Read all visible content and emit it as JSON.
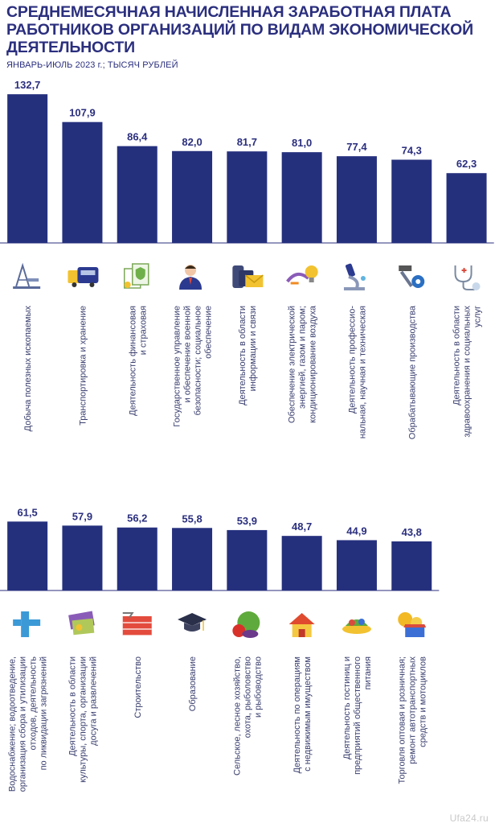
{
  "title": "СРЕДНЕМЕСЯЧНАЯ НАЧИСЛЕННАЯ ЗАРАБОТНАЯ ПЛАТА РАБОТНИКОВ ОРГАНИЗАЦИЙ ПО ВИДАМ ЭКОНОМИЧЕСКОЙ ДЕЯТЕЛЬНОСТИ",
  "subtitle": "ЯНВАРЬ-ИЮЛЬ 2023 г.; ТЫСЯЧ РУБЛЕЙ",
  "watermark": "Ufa24.ru",
  "colors": {
    "bar": "#25307d",
    "text": "#2b2f7e",
    "axis": "#2b2f7e"
  },
  "chart_data": [
    {
      "type": "bar",
      "categories": [
        [
          "Добыча полезных ископаемых"
        ],
        [
          "Транспортировка и хранение"
        ],
        [
          "Деятельность финансовая",
          "и страховая"
        ],
        [
          "Государственное управление",
          "и обеспечение военной",
          "безопасности; социальное",
          "обеспечение"
        ],
        [
          "Деятельность в области",
          "информации и связи"
        ],
        [
          "Обеспечение электрической",
          "энергией, газом и паром;",
          "кондиционирование воздуха"
        ],
        [
          "Деятельность профессио-",
          "нальная, научная и техническая"
        ],
        [
          "Обрабатывающие производства"
        ],
        [
          "Деятельность в области",
          "здравоохранения и социальных",
          "услуг"
        ]
      ],
      "values": [
        132.7,
        107.9,
        86.4,
        82.0,
        81.7,
        81.0,
        77.4,
        74.3,
        62.3
      ],
      "labels": [
        "132,7",
        "107,9",
        "86,4",
        "82,0",
        "81,7",
        "81,0",
        "77,4",
        "74,3",
        "62,3"
      ],
      "icons": [
        "oil-derrick-icon",
        "truck-icon",
        "finance-documents-icon",
        "government-official-icon",
        "phone-mail-icon",
        "energy-bulb-icon",
        "microscope-icon",
        "hammer-gear-icon",
        "stethoscope-icon"
      ]
    },
    {
      "type": "bar",
      "categories": [
        [
          "Водоснабжение; водоотведение,",
          "организация сбора и утилизации",
          "отходов, деятельность",
          "по ликвидации загрязнений"
        ],
        [
          "Деятельность в области",
          "культуры, спорта, организации",
          "досуга и развлечений"
        ],
        [
          "Строительство"
        ],
        [
          "Образование"
        ],
        [
          "Сельское, лесное хозяйство,",
          "охота, рыболовство",
          "и рыбоводство"
        ],
        [
          "Деятельность по операциям",
          "с недвижимым имуществом"
        ],
        [
          "Деятельность гостиниц и",
          "предприятий общественного",
          "питания"
        ],
        [
          "Торговля оптовая и розничная;",
          "ремонт автотранспортных",
          "средств и мотоциклов"
        ]
      ],
      "values": [
        61.5,
        57.9,
        56.2,
        55.8,
        53.9,
        48.7,
        44.9,
        43.8
      ],
      "labels": [
        "61,5",
        "57,9",
        "56,2",
        "55,8",
        "53,9",
        "48,7",
        "44,9",
        "43,8"
      ],
      "icons": [
        "water-pipe-icon",
        "culture-tickets-icon",
        "bricks-icon",
        "graduation-cap-icon",
        "vegetables-icon",
        "house-icon",
        "food-dish-icon",
        "coins-shop-icon"
      ]
    }
  ]
}
